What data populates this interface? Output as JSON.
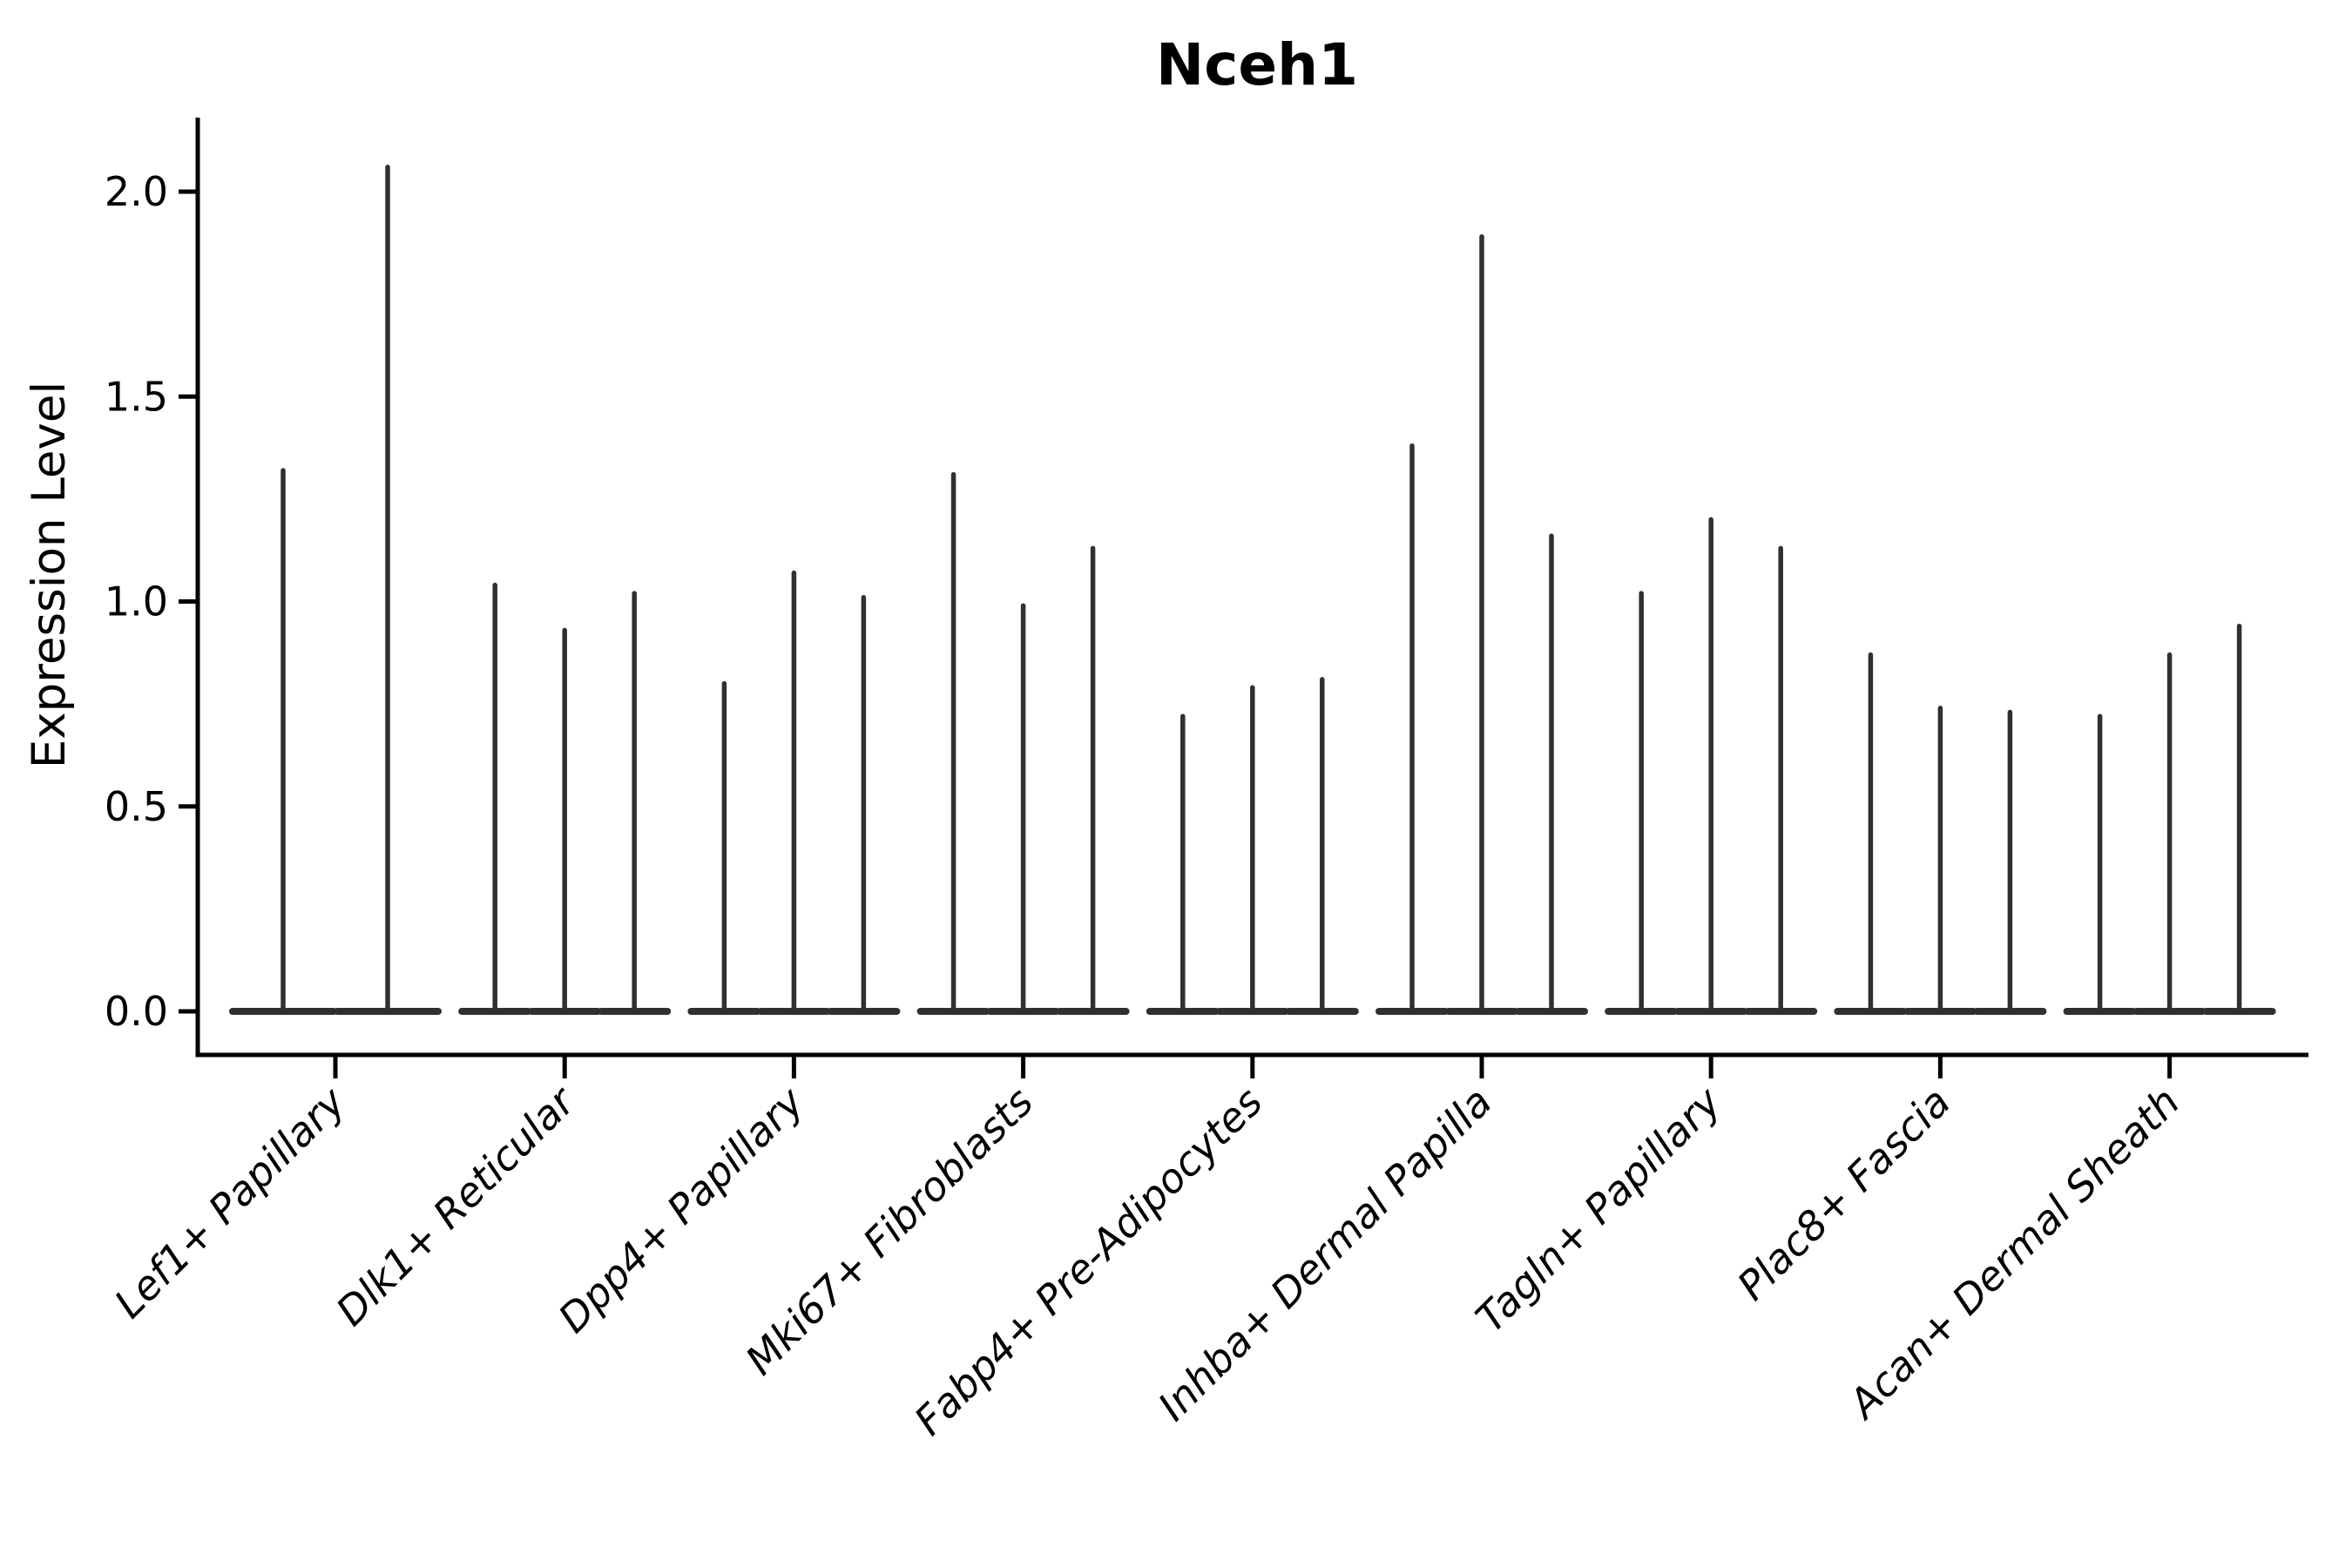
{
  "figure": {
    "background": "#ffffff",
    "violin_color": "#303030",
    "axis_color": "#000000",
    "text_color": "#000000"
  },
  "chart_data": {
    "type": "violin",
    "title": "Nceh1",
    "ylabel": "Expression Level",
    "xlabel": "",
    "yticks": [
      "0.0",
      "0.5",
      "1.0",
      "1.5",
      "2.0"
    ],
    "ylim": [
      -0.12,
      2.18
    ],
    "grid": false,
    "legend": "none",
    "x_tick_rotation": 45,
    "style_note": "very thin spike-like violins (most values at 0) with wide flat bases at y=0; groups of 2-3 violins per category",
    "categories": [
      "Lef1+ Papillary",
      "Dlk1+ Reticular",
      "Dpp4+ Papillary",
      "Mki67+ Fibroblasts",
      "Fabp4+ Pre-Adipocytes",
      "Inhba+ Dermal Papilla",
      "Tagln+ Papillary",
      "Plac8+ Fascia",
      "Acan+ Dermal Sheath"
    ],
    "groups": [
      {
        "label": "Lef1+ Papillary",
        "violin_max_values": [
          1.32,
          2.06
        ]
      },
      {
        "label": "Dlk1+ Reticular",
        "violin_max_values": [
          1.04,
          0.93,
          1.02
        ]
      },
      {
        "label": "Dpp4+ Papillary",
        "violin_max_values": [
          0.8,
          1.07,
          1.01
        ]
      },
      {
        "label": "Mki67+ Fibroblasts",
        "violin_max_values": [
          1.31,
          0.99,
          1.13
        ]
      },
      {
        "label": "Fabp4+ Pre-Adipocytes",
        "violin_max_values": [
          0.72,
          0.79,
          0.81
        ]
      },
      {
        "label": "Inhba+ Dermal Papilla",
        "violin_max_values": [
          1.38,
          1.89,
          1.16
        ]
      },
      {
        "label": "Tagln+ Papillary",
        "violin_max_values": [
          1.02,
          1.2,
          1.13
        ]
      },
      {
        "label": "Plac8+ Fascia",
        "violin_max_values": [
          0.87,
          0.74,
          0.73
        ]
      },
      {
        "label": "Acan+ Dermal Sheath",
        "violin_max_values": [
          0.72,
          0.87,
          0.94
        ]
      }
    ]
  }
}
